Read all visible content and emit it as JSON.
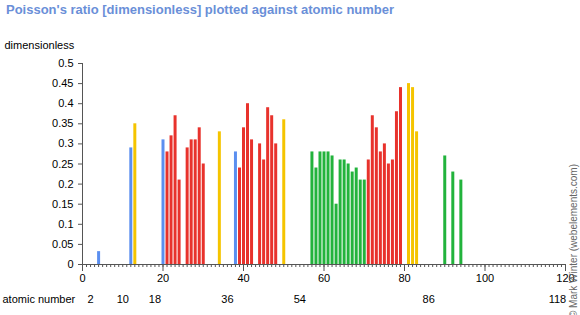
{
  "chart_data": {
    "type": "bar",
    "title": "Poisson's ratio [dimensionless] plotted against atomic number",
    "y_label": "dimensionless",
    "x_label": "atomic number",
    "annotation": "© Mark Winter (webelements.com)",
    "x": [
      4,
      12,
      13,
      20,
      21,
      22,
      23,
      24,
      26,
      27,
      28,
      29,
      30,
      34,
      38,
      39,
      40,
      41,
      42,
      44,
      45,
      46,
      47,
      48,
      50,
      57,
      58,
      59,
      60,
      61,
      62,
      63,
      64,
      65,
      66,
      67,
      68,
      69,
      70,
      71,
      72,
      73,
      74,
      75,
      76,
      77,
      78,
      79,
      81,
      82,
      83,
      90,
      92,
      94
    ],
    "values": [
      0.032,
      0.29,
      0.35,
      0.31,
      0.28,
      0.32,
      0.37,
      0.21,
      0.29,
      0.31,
      0.31,
      0.34,
      0.25,
      0.33,
      0.28,
      0.24,
      0.34,
      0.4,
      0.31,
      0.3,
      0.26,
      0.39,
      0.37,
      0.3,
      0.36,
      0.28,
      0.24,
      0.28,
      0.28,
      0.28,
      0.27,
      0.15,
      0.26,
      0.26,
      0.25,
      0.23,
      0.24,
      0.21,
      0.21,
      0.26,
      0.37,
      0.34,
      0.28,
      0.3,
      0.25,
      0.26,
      0.38,
      0.44,
      0.45,
      0.44,
      0.33,
      0.27,
      0.23,
      0.21
    ],
    "colors": [
      "#5b8ff0",
      "#5b8ff0",
      "#f5c400",
      "#5b8ff0",
      "#e8322c",
      "#e8322c",
      "#e8322c",
      "#e8322c",
      "#e8322c",
      "#e8322c",
      "#e8322c",
      "#e8322c",
      "#e8322c",
      "#f5c400",
      "#5b8ff0",
      "#e8322c",
      "#e8322c",
      "#e8322c",
      "#e8322c",
      "#e8322c",
      "#e8322c",
      "#e8322c",
      "#e8322c",
      "#e8322c",
      "#f5c400",
      "#22b33c",
      "#22b33c",
      "#22b33c",
      "#22b33c",
      "#22b33c",
      "#22b33c",
      "#22b33c",
      "#22b33c",
      "#22b33c",
      "#22b33c",
      "#22b33c",
      "#22b33c",
      "#22b33c",
      "#22b33c",
      "#e8322c",
      "#e8322c",
      "#e8322c",
      "#e8322c",
      "#e8322c",
      "#e8322c",
      "#e8322c",
      "#e8322c",
      "#e8322c",
      "#f5c400",
      "#f5c400",
      "#f5c400",
      "#22b33c",
      "#22b33c",
      "#22b33c"
    ],
    "xlim": [
      0,
      120
    ],
    "xticks": [
      0,
      20,
      40,
      60,
      80,
      100,
      120
    ],
    "x2lim": [
      0,
      120
    ],
    "x2ticks": [
      2,
      10,
      18,
      36,
      54,
      86,
      118
    ],
    "ylim": [
      0,
      0.5
    ],
    "yticks": [
      0,
      0.05,
      0.1,
      0.15,
      0.2,
      0.25,
      0.3,
      0.35,
      0.4,
      0.45,
      0.5
    ],
    "grid": false
  }
}
